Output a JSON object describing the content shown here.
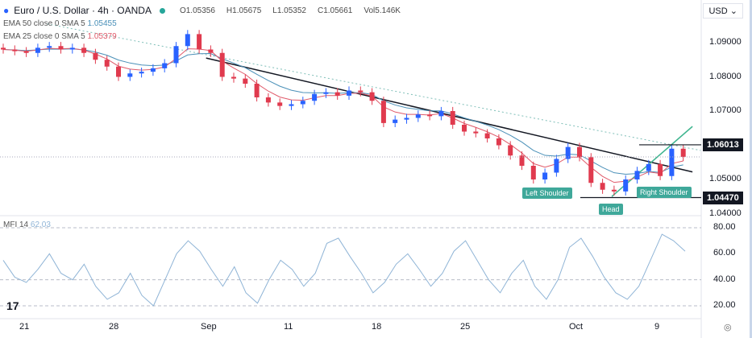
{
  "header": {
    "symbol": "Euro / U.S. Dollar · 4h · OANDA",
    "open": "O1.05356",
    "high": "H1.05675",
    "low": "L1.05352",
    "close": "C1.05661",
    "volume": "Vol5.146K",
    "currency": "USD"
  },
  "indicators": {
    "ema50": "EMA 50 close 0 SMA 5",
    "ema50_value": "1.05455",
    "ema25": "EMA 25 close 0 SMA 5",
    "ema25_value": "1.05379",
    "mfi": "MFI 14",
    "mfi_value": "62.03"
  },
  "chart_data": [
    {
      "type": "candlestick",
      "price_ticks": [
        "1.09000",
        "1.08000",
        "1.07000",
        "1.05000",
        "1.04000"
      ],
      "ylim": [
        1.0375,
        1.0965
      ],
      "x_ticks": [
        "21",
        "28",
        "Sep",
        "11",
        "18",
        "25",
        "Oct",
        "9"
      ],
      "closes": [
        1.088,
        1.0875,
        1.087,
        1.0885,
        1.089,
        1.088,
        1.0885,
        1.087,
        1.085,
        1.083,
        1.08,
        1.081,
        1.0815,
        1.0825,
        1.084,
        1.089,
        1.0925,
        1.088,
        1.087,
        1.08,
        1.0795,
        1.078,
        1.074,
        1.0725,
        1.0715,
        1.072,
        1.073,
        1.075,
        1.0755,
        1.0745,
        1.076,
        1.0755,
        1.073,
        1.0665,
        1.0675,
        1.068,
        1.069,
        1.0685,
        1.07,
        1.066,
        1.064,
        1.0635,
        1.062,
        1.06,
        1.057,
        1.054,
        1.05,
        1.052,
        1.056,
        1.0595,
        1.0565,
        1.049,
        1.047,
        1.0465,
        1.05,
        1.0525,
        1.0545,
        1.051,
        1.059,
        1.0566
      ],
      "levels": [
        {
          "price": 1.06013,
          "label": "1.06013"
        },
        {
          "price": 1.0447,
          "label": "1.04470"
        }
      ],
      "trendlines": [
        {
          "from": [
            17.6,
            1.0855
          ],
          "to": [
            59.8,
            1.0522
          ],
          "color": "#131722"
        },
        {
          "from": [
            52.8,
            1.045
          ],
          "to": [
            59.8,
            1.0655
          ],
          "color": "#3fb58f"
        },
        {
          "from": [
            3.8,
            1.0955
          ],
          "to": [
            60.5,
            1.0585
          ],
          "color": "#7fbfb8",
          "dashed": true
        }
      ],
      "annotations": [
        "Left Shoulder",
        "Head",
        "Right Shoulder"
      ],
      "colors": {
        "up": "#2962ff",
        "down": "#e03a4e",
        "ema50": "#4a90b8",
        "ema25": "#e05a6a"
      }
    },
    {
      "type": "line",
      "name": "MFI 14",
      "ylim": [
        12,
        88
      ],
      "y_ticks": [
        "80.00",
        "60.00",
        "40.00",
        "20.00"
      ],
      "values": [
        55,
        42,
        38,
        48,
        60,
        45,
        40,
        52,
        35,
        25,
        30,
        45,
        28,
        20,
        40,
        60,
        70,
        62,
        48,
        35,
        50,
        30,
        22,
        40,
        55,
        48,
        35,
        45,
        68,
        72,
        58,
        45,
        30,
        38,
        52,
        60,
        48,
        35,
        45,
        62,
        70,
        55,
        40,
        30,
        45,
        55,
        35,
        25,
        40,
        65,
        72,
        58,
        42,
        30,
        25,
        35,
        55,
        75,
        70,
        62
      ],
      "color": "#8fb4d6"
    }
  ]
}
